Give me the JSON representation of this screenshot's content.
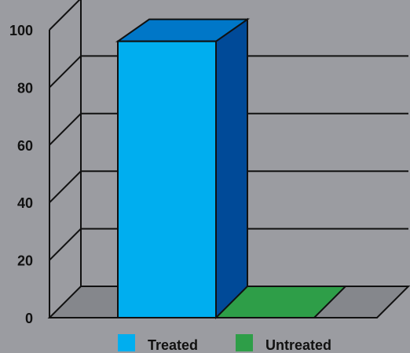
{
  "chart_data": {
    "type": "bar",
    "categories": [
      "Treated",
      "Untreated"
    ],
    "values": [
      96,
      0
    ],
    "ylim": [
      0,
      100
    ],
    "yticks": [
      0,
      20,
      40,
      60,
      80,
      100
    ],
    "three_d": true,
    "grid": true,
    "legend_position": "bottom",
    "legend": [
      {
        "label": "Treated",
        "color": "#00aeef"
      },
      {
        "label": "Untreated",
        "color": "#2e9e48"
      }
    ],
    "colors": {
      "background": "#9b9ca1",
      "floor": "#85878c",
      "treated_front": "#00aeef",
      "treated_side": "#004a98",
      "treated_top": "#0077c8",
      "untreated_top": "#2e9e48",
      "untreated_legend": "#3f9e4e"
    }
  }
}
